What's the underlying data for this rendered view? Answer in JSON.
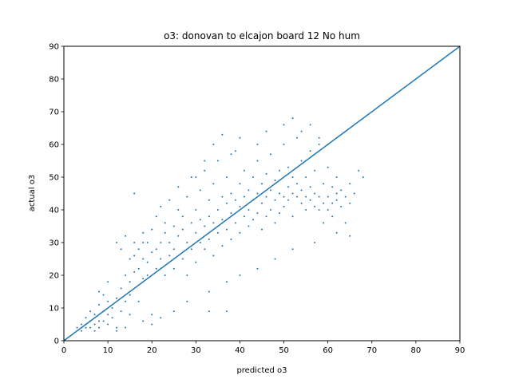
{
  "chart_data": {
    "type": "scatter",
    "title": "o3: donovan to elcajon board 12 No hum",
    "xlabel": "predicted o3",
    "ylabel": "actual o3",
    "xlim": [
      0,
      90
    ],
    "ylim": [
      0,
      90
    ],
    "xticks": [
      "0",
      "10",
      "20",
      "30",
      "40",
      "50",
      "60",
      "70",
      "80",
      "90"
    ],
    "yticks": [
      "0",
      "10",
      "20",
      "30",
      "40",
      "50",
      "60",
      "70",
      "80",
      "90"
    ],
    "grid": false,
    "color": "#1f77b4",
    "series": [
      {
        "type": "scatter",
        "points": [
          [
            3,
            4
          ],
          [
            4,
            5
          ],
          [
            4,
            3
          ],
          [
            5,
            5
          ],
          [
            5,
            4
          ],
          [
            5,
            7
          ],
          [
            6,
            4
          ],
          [
            6,
            6
          ],
          [
            6,
            9
          ],
          [
            7,
            5
          ],
          [
            7,
            8
          ],
          [
            7,
            3
          ],
          [
            8,
            6
          ],
          [
            8,
            11
          ],
          [
            8,
            4
          ],
          [
            9,
            9
          ],
          [
            9,
            6
          ],
          [
            9,
            14
          ],
          [
            10,
            8
          ],
          [
            10,
            12
          ],
          [
            10,
            5
          ],
          [
            11,
            10
          ],
          [
            11,
            7
          ],
          [
            12,
            13
          ],
          [
            12,
            30
          ],
          [
            12,
            3
          ],
          [
            13,
            16
          ],
          [
            13,
            9
          ],
          [
            13,
            28
          ],
          [
            14,
            12
          ],
          [
            14,
            20
          ],
          [
            14,
            32
          ],
          [
            15,
            18
          ],
          [
            15,
            14
          ],
          [
            15,
            25
          ],
          [
            16,
            30
          ],
          [
            16,
            21
          ],
          [
            16,
            45
          ],
          [
            17,
            22
          ],
          [
            17,
            12
          ],
          [
            17,
            28
          ],
          [
            18,
            25
          ],
          [
            18,
            33
          ],
          [
            18,
            19
          ],
          [
            19,
            20
          ],
          [
            19,
            30
          ],
          [
            19,
            24
          ],
          [
            20,
            27
          ],
          [
            20,
            34
          ],
          [
            20,
            8
          ],
          [
            21,
            22
          ],
          [
            21,
            38
          ],
          [
            21,
            28
          ],
          [
            22,
            30
          ],
          [
            22,
            25
          ],
          [
            22,
            41
          ],
          [
            23,
            33
          ],
          [
            23,
            20
          ],
          [
            23,
            36
          ],
          [
            24,
            30
          ],
          [
            24,
            43
          ],
          [
            24,
            26
          ],
          [
            25,
            28
          ],
          [
            25,
            35
          ],
          [
            25,
            22
          ],
          [
            26,
            32
          ],
          [
            26,
            40
          ],
          [
            26,
            47
          ],
          [
            27,
            34
          ],
          [
            27,
            25
          ],
          [
            27,
            38
          ],
          [
            28,
            30
          ],
          [
            28,
            44
          ],
          [
            28,
            20
          ],
          [
            29,
            36
          ],
          [
            29,
            28
          ],
          [
            29,
            50
          ],
          [
            30,
            33
          ],
          [
            30,
            40
          ],
          [
            30,
            24
          ],
          [
            31,
            30
          ],
          [
            31,
            46
          ],
          [
            31,
            37
          ],
          [
            32,
            35
          ],
          [
            32,
            28
          ],
          [
            32,
            52
          ],
          [
            33,
            38
          ],
          [
            33,
            31
          ],
          [
            33,
            43
          ],
          [
            34,
            36
          ],
          [
            34,
            26
          ],
          [
            34,
            48
          ],
          [
            35,
            40
          ],
          [
            35,
            33
          ],
          [
            35,
            55
          ],
          [
            36,
            37
          ],
          [
            36,
            44
          ],
          [
            36,
            29
          ],
          [
            37,
            42
          ],
          [
            37,
            34
          ],
          [
            37,
            50
          ],
          [
            38,
            39
          ],
          [
            38,
            45
          ],
          [
            38,
            31
          ],
          [
            39,
            43
          ],
          [
            39,
            36
          ],
          [
            39,
            58
          ],
          [
            40,
            41
          ],
          [
            40,
            48
          ],
          [
            40,
            33
          ],
          [
            41,
            44
          ],
          [
            41,
            38
          ],
          [
            41,
            52
          ],
          [
            42,
            40
          ],
          [
            42,
            46
          ],
          [
            42,
            35
          ],
          [
            43,
            43
          ],
          [
            43,
            50
          ],
          [
            43,
            37
          ],
          [
            44,
            45
          ],
          [
            44,
            39
          ],
          [
            44,
            55
          ],
          [
            45,
            42
          ],
          [
            45,
            48
          ],
          [
            45,
            34
          ],
          [
            46,
            44
          ],
          [
            46,
            51
          ],
          [
            46,
            38
          ],
          [
            47,
            46
          ],
          [
            47,
            40
          ],
          [
            47,
            57
          ],
          [
            48,
            43
          ],
          [
            48,
            49
          ],
          [
            48,
            36
          ],
          [
            49,
            45
          ],
          [
            49,
            52
          ],
          [
            49,
            39
          ],
          [
            50,
            44
          ],
          [
            50,
            41
          ],
          [
            50,
            60
          ],
          [
            51,
            47
          ],
          [
            51,
            43
          ],
          [
            51,
            53
          ],
          [
            52,
            45
          ],
          [
            52,
            50
          ],
          [
            52,
            38
          ],
          [
            53,
            44
          ],
          [
            53,
            48
          ],
          [
            53,
            62
          ],
          [
            54,
            42
          ],
          [
            54,
            46
          ],
          [
            54,
            55
          ],
          [
            55,
            44
          ],
          [
            55,
            40
          ],
          [
            55,
            50
          ],
          [
            56,
            43
          ],
          [
            56,
            47
          ],
          [
            56,
            58
          ],
          [
            57,
            41
          ],
          [
            57,
            45
          ],
          [
            57,
            52
          ],
          [
            58,
            44
          ],
          [
            58,
            40
          ],
          [
            58,
            60
          ],
          [
            59,
            42
          ],
          [
            59,
            48
          ],
          [
            59,
            36
          ],
          [
            60,
            44
          ],
          [
            60,
            40
          ],
          [
            60,
            53
          ],
          [
            61,
            42
          ],
          [
            61,
            47
          ],
          [
            61,
            38
          ],
          [
            62,
            43
          ],
          [
            62,
            50
          ],
          [
            62,
            45
          ],
          [
            63,
            41
          ],
          [
            63,
            46
          ],
          [
            64,
            44
          ],
          [
            64,
            36
          ],
          [
            65,
            42
          ],
          [
            65,
            48
          ],
          [
            66,
            45
          ],
          [
            67,
            52
          ],
          [
            68,
            50
          ],
          [
            65,
            32
          ],
          [
            62,
            33
          ],
          [
            57,
            30
          ],
          [
            52,
            28
          ],
          [
            48,
            25
          ],
          [
            44,
            22
          ],
          [
            40,
            20
          ],
          [
            37,
            18
          ],
          [
            33,
            15
          ],
          [
            28,
            12
          ],
          [
            25,
            9
          ],
          [
            22,
            7
          ],
          [
            20,
            5
          ],
          [
            33,
            9
          ],
          [
            37,
            9
          ],
          [
            30,
            50
          ],
          [
            32,
            55
          ],
          [
            34,
            60
          ],
          [
            36,
            63
          ],
          [
            38,
            57
          ],
          [
            40,
            62
          ],
          [
            44,
            60
          ],
          [
            46,
            64
          ],
          [
            50,
            66
          ],
          [
            52,
            68
          ],
          [
            54,
            64
          ],
          [
            56,
            66
          ],
          [
            58,
            62
          ],
          [
            60,
            60
          ],
          [
            15,
            8
          ],
          [
            18,
            6
          ],
          [
            10,
            18
          ],
          [
            8,
            15
          ],
          [
            12,
            4
          ],
          [
            14,
            4
          ],
          [
            16,
            26
          ],
          [
            18,
            30
          ]
        ]
      },
      {
        "type": "line",
        "name": "",
        "points": [
          [
            0,
            0
          ],
          [
            90,
            90
          ]
        ]
      }
    ]
  }
}
